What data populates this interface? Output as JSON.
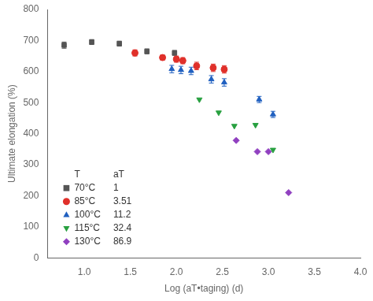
{
  "chart_data": {
    "type": "scatter",
    "xlabel": "Log (aT•taging) (d)",
    "ylabel": "Ultimate elongation (%)",
    "xlim": [
      0.6,
      4.0
    ],
    "ylim": [
      0,
      800
    ],
    "xticks": [
      {
        "value": 1.0,
        "label": "1.0"
      },
      1.5,
      {
        "value": 2.0,
        "label": "2.0"
      },
      2.5,
      {
        "value": 3.0,
        "label": "3.0"
      },
      3.5,
      {
        "value": 4.0,
        "label": "4.0"
      }
    ],
    "yticks": [
      0,
      100,
      200,
      300,
      400,
      500,
      600,
      700,
      800
    ],
    "grid": false,
    "legend": "lower left",
    "legend_columns": [
      "T",
      "aT"
    ],
    "series": [
      {
        "name": "70°C",
        "aT": 1,
        "color": "#555555",
        "marker": "square",
        "x": [
          0.78,
          1.08,
          1.38,
          1.68,
          1.98
        ],
        "values": [
          685,
          695,
          690,
          665,
          660
        ],
        "yerr": [
          10,
          8,
          8,
          8,
          8
        ]
      },
      {
        "name": "85°C",
        "aT": 3.51,
        "color": "#e0302a",
        "marker": "circle",
        "x": [
          1.55,
          1.85,
          2.0,
          2.07,
          2.22,
          2.4,
          2.52
        ],
        "values": [
          660,
          645,
          640,
          635,
          618,
          612,
          607
        ],
        "yerr": [
          10,
          8,
          10,
          10,
          12,
          12,
          12
        ]
      },
      {
        "name": "100°C",
        "aT": 11.2,
        "color": "#2060c0",
        "marker": "triangle-up",
        "x": [
          1.95,
          2.05,
          2.16,
          2.38,
          2.52,
          2.9,
          3.05
        ],
        "values": [
          608,
          605,
          602,
          575,
          565,
          510,
          462
        ],
        "yerr": [
          12,
          12,
          12,
          12,
          12,
          10,
          10
        ]
      },
      {
        "name": "115°C",
        "aT": 32.4,
        "color": "#28a040",
        "marker": "triangle-down",
        "x": [
          2.25,
          2.46,
          2.63,
          2.86,
          3.05
        ],
        "values": [
          510,
          468,
          425,
          428,
          348
        ]
      },
      {
        "name": "130°C",
        "aT": 86.9,
        "color": "#9040c0",
        "marker": "diamond",
        "x": [
          2.65,
          2.88,
          3.0,
          3.22
        ],
        "values": [
          378,
          342,
          342,
          210
        ]
      }
    ]
  }
}
